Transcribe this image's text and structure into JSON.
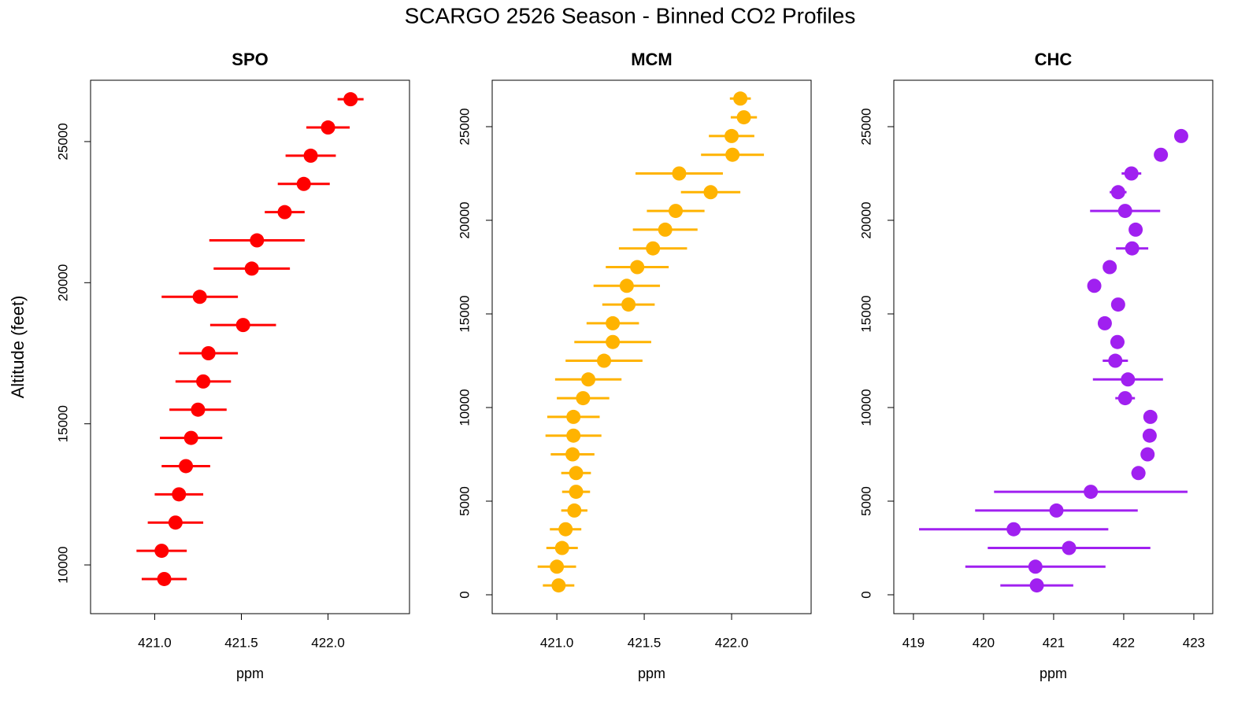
{
  "title": "SCARGO 2526 Season - Binned CO2 Profiles",
  "chart_data": [
    {
      "type": "scatter",
      "title": "SPO",
      "xlabel": "ppm",
      "ylabel": "Altitude (feet)",
      "color": "#ff0000",
      "xlim": [
        420.63,
        422.47
      ],
      "ylim": [
        8273,
        27173
      ],
      "xticks": [
        {
          "value": 421,
          "label": "421.0"
        },
        {
          "value": 421.5,
          "label": "421.5"
        },
        {
          "value": 422,
          "label": "422.0"
        }
      ],
      "yticks": [
        10000,
        15000,
        20000,
        25000
      ],
      "y": [
        9500,
        10500,
        11500,
        12500,
        13500,
        14500,
        15500,
        16500,
        17500,
        18500,
        19500,
        20500,
        21500,
        22500,
        23500,
        24500,
        25500,
        26500
      ],
      "x": [
        421.055,
        421.04,
        421.12,
        421.14,
        421.18,
        421.21,
        421.25,
        421.28,
        421.31,
        421.51,
        421.26,
        421.56,
        421.59,
        421.75,
        421.86,
        421.9,
        422.0,
        422.13
      ],
      "xerr": [
        0.13,
        0.145,
        0.16,
        0.14,
        0.14,
        0.18,
        0.165,
        0.16,
        0.17,
        0.19,
        0.22,
        0.22,
        0.275,
        0.115,
        0.15,
        0.145,
        0.125,
        0.075
      ]
    },
    {
      "type": "scatter",
      "title": "MCM",
      "xlabel": "ppm",
      "color": "#ffb300",
      "xlim": [
        420.63,
        422.455
      ],
      "ylim": [
        -1008,
        27479
      ],
      "xticks": [
        {
          "value": 421,
          "label": "421.0"
        },
        {
          "value": 421.5,
          "label": "421.5"
        },
        {
          "value": 422,
          "label": "422.0"
        }
      ],
      "yticks": [
        0,
        5000,
        10000,
        15000,
        20000,
        25000
      ],
      "y": [
        500,
        1500,
        2500,
        3500,
        4500,
        5500,
        6500,
        7500,
        8500,
        9500,
        10500,
        11500,
        12500,
        13500,
        14500,
        15500,
        16500,
        17500,
        18500,
        19500,
        20500,
        21500,
        22500,
        23500,
        24500,
        25500,
        26500
      ],
      "x": [
        421.01,
        421.0,
        421.03,
        421.05,
        421.1,
        421.11,
        421.11,
        421.09,
        421.095,
        421.095,
        421.15,
        421.18,
        421.27,
        421.32,
        421.32,
        421.41,
        421.4,
        421.46,
        421.55,
        421.62,
        421.68,
        421.88,
        421.7,
        422.005,
        422.0,
        422.07,
        422.05
      ],
      "xerr": [
        0.09,
        0.11,
        0.09,
        0.09,
        0.075,
        0.08,
        0.085,
        0.125,
        0.16,
        0.15,
        0.15,
        0.19,
        0.22,
        0.22,
        0.15,
        0.15,
        0.19,
        0.18,
        0.195,
        0.185,
        0.165,
        0.17,
        0.25,
        0.18,
        0.13,
        0.075,
        0.06
      ]
    },
    {
      "type": "scatter",
      "title": "CHC",
      "xlabel": "ppm",
      "color": "#a020f0",
      "xlim": [
        418.72,
        423.27
      ],
      "ylim": [
        -1008,
        27479
      ],
      "xticks": [
        419,
        420,
        421,
        422,
        423
      ],
      "yticks": [
        0,
        5000,
        10000,
        15000,
        20000,
        25000
      ],
      "y": [
        500,
        1500,
        2500,
        3500,
        4500,
        5500,
        6500,
        7500,
        8500,
        9500,
        10500,
        11500,
        12500,
        13500,
        14500,
        15500,
        16500,
        17500,
        18500,
        19500,
        20500,
        21500,
        22500,
        23500,
        24500
      ],
      "x": [
        420.76,
        420.74,
        421.22,
        420.43,
        421.04,
        421.53,
        422.21,
        422.34,
        422.37,
        422.38,
        422.02,
        422.06,
        421.88,
        421.91,
        421.73,
        421.92,
        421.58,
        421.8,
        422.12,
        422.17,
        422.02,
        421.92,
        422.11,
        422.53,
        422.82
      ],
      "xerr": [
        0.52,
        1.0,
        1.16,
        1.35,
        1.16,
        1.38,
        0.1,
        0.05,
        0.05,
        0.05,
        0.14,
        0.5,
        0.18,
        0.1,
        0.05,
        0.05,
        0.05,
        0.05,
        0.23,
        0.05,
        0.5,
        0.12,
        0.14,
        0.05,
        0.05
      ]
    }
  ]
}
